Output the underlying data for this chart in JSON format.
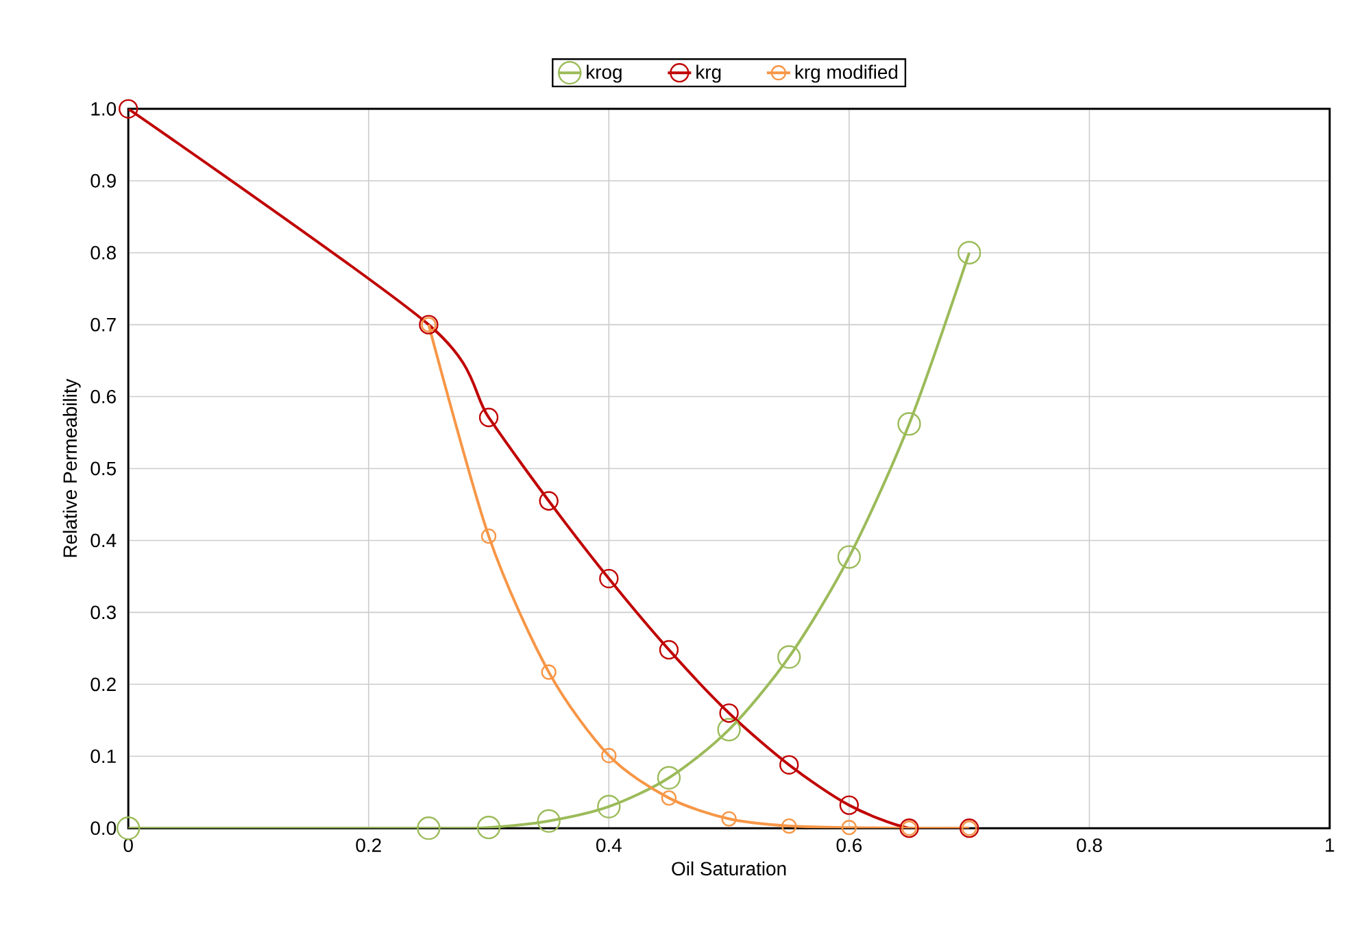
{
  "chart_data": {
    "type": "line",
    "xlabel": "Oil Saturation",
    "ylabel": "Relative Permeability",
    "xlim": [
      0,
      1
    ],
    "xticks": [
      0,
      0.2,
      0.4,
      0.6,
      0.8,
      1
    ],
    "ylim": [
      0,
      1.0
    ],
    "yticks": [
      {
        "value": 0,
        "label": "0.0"
      },
      0.1,
      0.2,
      0.3,
      0.4,
      0.5,
      0.6,
      0.7,
      0.8,
      0.9,
      {
        "value": 1,
        "label": "1.0"
      }
    ],
    "grid": true,
    "legend": "top",
    "marker": "circle",
    "line_style": "solid",
    "series": [
      {
        "name": "krog",
        "color": "#9bbb59",
        "x": [
          0,
          0.25,
          0.3,
          0.35,
          0.4,
          0.45,
          0.5,
          0.55,
          0.6,
          0.65,
          0.7
        ],
        "values": [
          0,
          0,
          0.001,
          0.01,
          0.03,
          0.07,
          0.137,
          0.238,
          0.377,
          0.562,
          0.8
        ]
      },
      {
        "name": "krg",
        "color": "#c00000",
        "x": [
          0,
          0.25,
          0.3,
          0.35,
          0.4,
          0.45,
          0.5,
          0.55,
          0.6,
          0.65,
          0.7
        ],
        "values": [
          1.0,
          0.7,
          0.571,
          0.455,
          0.347,
          0.248,
          0.16,
          0.088,
          0.032,
          0,
          0
        ]
      },
      {
        "name": "krg modified",
        "color": "#f79646",
        "x": [
          0.25,
          0.3,
          0.35,
          0.4,
          0.45,
          0.5,
          0.55,
          0.6,
          0.65,
          0.7
        ],
        "values": [
          0.7,
          0.406,
          0.217,
          0.101,
          0.042,
          0.013,
          0.003,
          0.001,
          0,
          0
        ]
      }
    ]
  }
}
